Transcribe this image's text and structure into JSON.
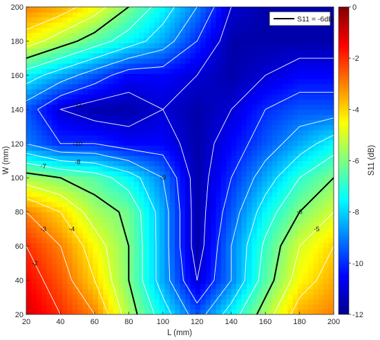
{
  "chart_data": {
    "type": "heatmap",
    "xlabel": "L (mm)",
    "ylabel": "W (mm)",
    "colorbar_label": "S11 (dB)",
    "xlim": [
      20,
      200
    ],
    "ylim": [
      20,
      200
    ],
    "clim": [
      -12,
      0
    ],
    "x_ticks": [
      "20",
      "40",
      "60",
      "80",
      "100",
      "120",
      "140",
      "160",
      "180",
      "200"
    ],
    "y_ticks": [
      "20",
      "40",
      "60",
      "80",
      "100",
      "120",
      "140",
      "160",
      "180",
      "200"
    ],
    "colorbar_ticks": [
      "0",
      "-2",
      "-4",
      "-6",
      "-8",
      "-10",
      "-12"
    ],
    "legend": {
      "position": "top-right",
      "entries": [
        {
          "label": "S11 = -6dB",
          "color": "#000000"
        }
      ]
    },
    "colormap": "jet",
    "grid": false,
    "contour_levels": [
      -11,
      -10,
      -9,
      -8,
      -7,
      -6,
      -5,
      -4,
      -3,
      -2
    ],
    "highlight_level": -6,
    "x_samples": [
      20,
      40,
      60,
      80,
      100,
      120,
      140,
      160,
      180,
      200
    ],
    "y_samples": [
      20,
      40,
      60,
      80,
      100,
      120,
      140,
      160,
      180,
      200
    ],
    "values": [
      [
        -1.0,
        -2.0,
        -3.0,
        -5.5,
        -7.5,
        -9.5,
        -7.5,
        -5.5,
        -3.5,
        -3.0
      ],
      [
        -1.5,
        -2.5,
        -4.0,
        -6.0,
        -8.5,
        -11.0,
        -9.0,
        -6.5,
        -4.5,
        -3.5
      ],
      [
        -2.0,
        -3.0,
        -4.5,
        -6.0,
        -8.5,
        -11.5,
        -9.0,
        -6.8,
        -5.0,
        -4.0
      ],
      [
        -3.0,
        -4.0,
        -5.5,
        -6.2,
        -8.5,
        -11.5,
        -9.5,
        -7.5,
        -6.0,
        -5.0
      ],
      [
        -5.5,
        -6.0,
        -6.5,
        -7.5,
        -9.0,
        -11.5,
        -10.0,
        -8.5,
        -7.0,
        -6.0
      ],
      [
        -9.0,
        -10.0,
        -10.0,
        -10.5,
        -10.5,
        -11.5,
        -10.5,
        -9.5,
        -8.5,
        -7.5
      ],
      [
        -9.5,
        -11.0,
        -11.5,
        -11.5,
        -11.0,
        -11.5,
        -11.0,
        -10.0,
        -9.5,
        -9.5
      ],
      [
        -7.5,
        -8.5,
        -9.5,
        -10.5,
        -10.5,
        -11.0,
        -11.5,
        -11.0,
        -10.5,
        -10.5
      ],
      [
        -4.5,
        -5.5,
        -6.5,
        -7.5,
        -8.5,
        -10.0,
        -11.5,
        -11.5,
        -11.5,
        -11.5
      ],
      [
        -3.0,
        -3.5,
        -4.5,
        -6.0,
        -7.5,
        -9.0,
        -11.0,
        -11.5,
        -11.5,
        -11.5
      ]
    ]
  }
}
